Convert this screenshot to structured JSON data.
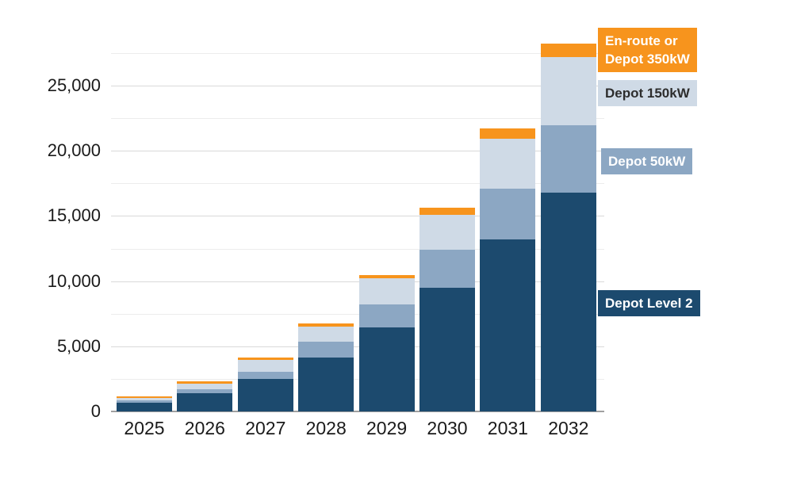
{
  "chart_data": {
    "type": "bar",
    "subtype": "stacked",
    "title": "",
    "xlabel": "",
    "ylabel": "",
    "categories": [
      "2025",
      "2026",
      "2027",
      "2028",
      "2029",
      "2030",
      "2031",
      "2032"
    ],
    "series": [
      {
        "name": "Depot Level 2",
        "color": "#1C4A6E",
        "values": [
          650,
          1370,
          2480,
          4120,
          6450,
          9490,
          13200,
          16800
        ]
      },
      {
        "name": "Depot 50kW",
        "color": "#8CA7C3",
        "values": [
          200,
          330,
          550,
          1210,
          1780,
          2940,
          3890,
          5150
        ]
      },
      {
        "name": "Depot 150kW",
        "color": "#CFDAE6",
        "values": [
          200,
          430,
          930,
          1180,
          1970,
          2660,
          3830,
          5270
        ]
      },
      {
        "name": "En-route or Depot 350kW",
        "color": "#F7941D",
        "values": [
          100,
          180,
          200,
          240,
          240,
          550,
          810,
          1020
        ]
      }
    ],
    "totals": [
      1150,
      2310,
      4160,
      6750,
      10440,
      15640,
      21730,
      28240
    ],
    "ylim": [
      0,
      28500
    ],
    "y_major_interval": 5000,
    "y_minor_interval": 2500,
    "grid": "on",
    "legend_position": "right",
    "y_tick_labels": [
      "0",
      "5,000",
      "10,000",
      "15,000",
      "20,000",
      "25,000"
    ],
    "legend": [
      {
        "id": "enroute-350kw",
        "lines": [
          "En-route or",
          "Depot 350kW"
        ],
        "box_color": "#F7941D",
        "text_color": "#ffffff"
      },
      {
        "id": "depot-150kw",
        "lines": [
          "Depot 150kW"
        ],
        "box_color": "#CFDAE6",
        "text_color": "#2d2d2d"
      },
      {
        "id": "depot-50kw",
        "lines": [
          "Depot 50kW"
        ],
        "box_color": "#8CA7C3",
        "text_color": "#ffffff"
      },
      {
        "id": "depot-level-2",
        "lines": [
          "Depot Level 2"
        ],
        "box_color": "#1C4A6E",
        "text_color": "#ffffff"
      }
    ]
  }
}
